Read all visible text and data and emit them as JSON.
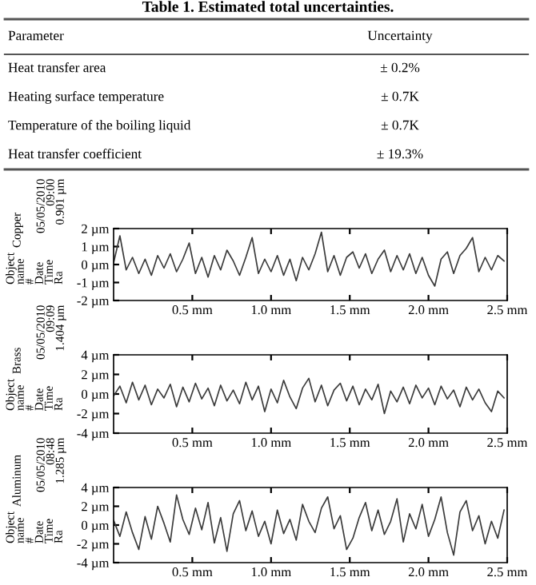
{
  "chart_data": [
    {
      "type": "other",
      "title": "Table 1. Estimated total uncertainties.",
      "annotations": [
        "Parameter",
        "Uncertainty",
        "Heat transfer area",
        "± 0.2%",
        "Heating surface temperature",
        "± 0.7K",
        "Temperature of the boiling liquid",
        "± 0.7K",
        "Heat transfer coefficient",
        "± 19.3%"
      ]
    },
    {
      "type": "line",
      "annotations": [
        "Copper",
        "05/05/2010\n09:00\n0.901 µm",
        "Object\nname\n#\nDate\nTime\nRa"
      ],
      "x": [
        0,
        0.04,
        0.08,
        0.12,
        0.16,
        0.2,
        0.24,
        0.28,
        0.32,
        0.36,
        0.4,
        0.44,
        0.48,
        0.52,
        0.56,
        0.6,
        0.64,
        0.68,
        0.72,
        0.76,
        0.8,
        0.84,
        0.88,
        0.92,
        0.96,
        1.0,
        1.04,
        1.08,
        1.12,
        1.16,
        1.2,
        1.24,
        1.28,
        1.32,
        1.36,
        1.4,
        1.44,
        1.48,
        1.52,
        1.56,
        1.6,
        1.64,
        1.68,
        1.72,
        1.76,
        1.8,
        1.84,
        1.88,
        1.92,
        1.96,
        2.0,
        2.04,
        2.08,
        2.12,
        2.16,
        2.2,
        2.24,
        2.28,
        2.32,
        2.36,
        2.4,
        2.44,
        2.48
      ],
      "series": [
        {
          "color": "#3a3a3a",
          "values": [
            0.1,
            1.6,
            -0.3,
            0.4,
            -0.5,
            0.3,
            -0.6,
            0.5,
            -0.2,
            0.6,
            -0.4,
            0.3,
            1.2,
            -0.5,
            0.4,
            -0.7,
            0.5,
            -0.3,
            0.8,
            0.2,
            -0.6,
            0.4,
            1.5,
            -0.5,
            0.3,
            -0.4,
            0.5,
            -0.6,
            0.3,
            -0.9,
            0.4,
            -0.3,
            0.6,
            1.8,
            -0.4,
            0.5,
            -0.6,
            0.4,
            0.7,
            -0.2,
            0.6,
            -0.5,
            0.3,
            0.8,
            -0.4,
            0.5,
            -0.3,
            0.6,
            -0.5,
            0.4,
            -0.6,
            -1.2,
            0.3,
            0.7,
            -0.5,
            0.5,
            0.9,
            1.5,
            -0.4,
            0.4,
            -0.3,
            0.5,
            0.2
          ]
        }
      ],
      "xlim": [
        0,
        2.5
      ],
      "ylim": [
        -2,
        2
      ],
      "xticks": [
        {
          "value": 0.5,
          "label": "0.5 mm"
        },
        {
          "value": 1.0,
          "label": "1.0 mm"
        },
        {
          "value": 1.5,
          "label": "1.5 mm"
        },
        {
          "value": 2.0,
          "label": "2.0 mm"
        },
        {
          "value": 2.5,
          "label": "2.5 mm"
        }
      ],
      "yticks": [
        {
          "value": -2,
          "label": "-2 µm"
        },
        {
          "value": -1,
          "label": "-1 µm"
        },
        {
          "value": 0,
          "label": "0 µm"
        },
        {
          "value": 1,
          "label": "1 µm"
        },
        {
          "value": 2,
          "label": "2 µm"
        }
      ]
    },
    {
      "type": "line",
      "annotations": [
        "Brass",
        "05/05/2010\n09:09\n1.404 µm",
        "Object\nname\n#\nDate\nTime\nRa"
      ],
      "x": [
        0,
        0.04,
        0.08,
        0.12,
        0.16,
        0.2,
        0.24,
        0.28,
        0.32,
        0.36,
        0.4,
        0.44,
        0.48,
        0.52,
        0.56,
        0.6,
        0.64,
        0.68,
        0.72,
        0.76,
        0.8,
        0.84,
        0.88,
        0.92,
        0.96,
        1.0,
        1.04,
        1.08,
        1.12,
        1.16,
        1.2,
        1.24,
        1.28,
        1.32,
        1.36,
        1.4,
        1.44,
        1.48,
        1.52,
        1.56,
        1.6,
        1.64,
        1.68,
        1.72,
        1.76,
        1.8,
        1.84,
        1.88,
        1.92,
        1.96,
        2.0,
        2.04,
        2.08,
        2.12,
        2.16,
        2.2,
        2.24,
        2.28,
        2.32,
        2.36,
        2.4,
        2.44,
        2.48
      ],
      "series": [
        {
          "color": "#3a3a3a",
          "values": [
            -0.2,
            0.8,
            -0.9,
            1.2,
            -0.6,
            0.9,
            -1.1,
            0.5,
            -0.4,
            1.0,
            -1.3,
            0.7,
            -0.8,
            1.1,
            -0.5,
            0.6,
            -1.2,
            0.9,
            -0.7,
            0.4,
            -1.0,
            1.2,
            -0.6,
            0.8,
            -1.8,
            0.5,
            -0.9,
            1.4,
            -0.3,
            -1.5,
            0.6,
            1.6,
            -0.8,
            0.9,
            -1.2,
            0.4,
            1.1,
            -0.7,
            0.8,
            -1.1,
            0.5,
            -0.6,
            1.0,
            -2.0,
            0.3,
            -0.8,
            0.7,
            -1.0,
            0.9,
            -0.4,
            0.6,
            -1.1,
            0.8,
            -0.5,
            0.4,
            -1.3,
            0.7,
            -0.6,
            0.5,
            -0.9,
            -1.8,
            0.3,
            -0.4
          ]
        }
      ],
      "xlim": [
        0,
        2.5
      ],
      "ylim": [
        -4,
        4
      ],
      "xticks": [
        {
          "value": 0.5,
          "label": "0.5 mm"
        },
        {
          "value": 1.0,
          "label": "1.0 mm"
        },
        {
          "value": 1.5,
          "label": "1.5 mm"
        },
        {
          "value": 2.0,
          "label": "2.0 mm"
        },
        {
          "value": 2.5,
          "label": "2.5 mm"
        }
      ],
      "yticks": [
        {
          "value": -4,
          "label": "-4 µm"
        },
        {
          "value": -2,
          "label": "-2 µm"
        },
        {
          "value": 0,
          "label": "0 µm"
        },
        {
          "value": 2,
          "label": "2 µm"
        },
        {
          "value": 4,
          "label": "4 µm"
        }
      ]
    },
    {
      "type": "line",
      "annotations": [
        "Aluminum",
        "05/05/2010\n08:48\n1.285 µm",
        "Object\nname\n#\nDate\nTime\nRa"
      ],
      "x": [
        0,
        0.04,
        0.08,
        0.12,
        0.16,
        0.2,
        0.24,
        0.28,
        0.32,
        0.36,
        0.4,
        0.44,
        0.48,
        0.52,
        0.56,
        0.6,
        0.64,
        0.68,
        0.72,
        0.76,
        0.8,
        0.84,
        0.88,
        0.92,
        0.96,
        1.0,
        1.04,
        1.08,
        1.12,
        1.16,
        1.2,
        1.24,
        1.28,
        1.32,
        1.36,
        1.4,
        1.44,
        1.48,
        1.52,
        1.56,
        1.6,
        1.64,
        1.68,
        1.72,
        1.76,
        1.8,
        1.84,
        1.88,
        1.92,
        1.96,
        2.0,
        2.04,
        2.08,
        2.12,
        2.16,
        2.2,
        2.24,
        2.28,
        2.32,
        2.36,
        2.4,
        2.44,
        2.48
      ],
      "series": [
        {
          "color": "#3a3a3a",
          "values": [
            0.5,
            -1.2,
            1.4,
            -0.8,
            -2.6,
            0.9,
            -1.5,
            2.0,
            0.2,
            -1.8,
            3.2,
            0.6,
            -1.0,
            1.8,
            -0.5,
            2.4,
            -1.9,
            0.8,
            -2.8,
            1.2,
            2.6,
            -0.6,
            1.5,
            -1.2,
            0.4,
            -2.0,
            1.6,
            -0.9,
            0.6,
            -1.6,
            2.2,
            0.4,
            -0.8,
            1.8,
            3.0,
            -0.4,
            1.0,
            -2.6,
            -1.4,
            0.8,
            2.4,
            -0.6,
            1.6,
            -1.0,
            0.4,
            2.8,
            -1.8,
            1.2,
            -0.4,
            2.2,
            -1.2,
            0.6,
            3.0,
            -0.8,
            -3.2,
            1.4,
            2.6,
            -0.6,
            1.0,
            -2.0,
            0.4,
            -1.4,
            1.6
          ]
        }
      ],
      "xlim": [
        0,
        2.5
      ],
      "ylim": [
        -4,
        4
      ],
      "xticks": [
        {
          "value": 0.5,
          "label": "0.5 mm"
        },
        {
          "value": 1.0,
          "label": "1.0 mm"
        },
        {
          "value": 1.5,
          "label": "1.5 mm"
        },
        {
          "value": 2.0,
          "label": "2.0 mm"
        },
        {
          "value": 2.5,
          "label": "2.5 mm"
        }
      ],
      "yticks": [
        {
          "value": -4,
          "label": "-4 µm"
        },
        {
          "value": -2,
          "label": "-2 µm"
        },
        {
          "value": 0,
          "label": "0 µm"
        },
        {
          "value": 2,
          "label": "2 µm"
        },
        {
          "value": 4,
          "label": "4 µm"
        }
      ]
    }
  ]
}
